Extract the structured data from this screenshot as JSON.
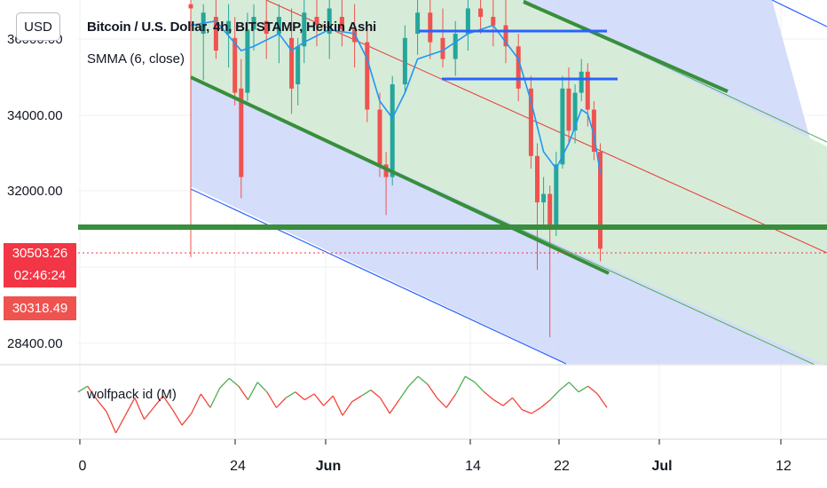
{
  "chart_data": {
    "type": "candlestick",
    "title": "Bitcoin / U.S. Dollar, 4h, BITSTAMP, Heikin Ashi",
    "indicator": "SMMA (6, close)",
    "oscillator": "wolfpack id (M)",
    "currency": "USD",
    "x_ticks": [
      "0",
      "24",
      "Jun",
      "14",
      "22",
      "Jul",
      "12"
    ],
    "y_ticks": [
      "36000.00",
      "34000.00",
      "32000.00",
      "28400.00"
    ],
    "last_price": "30503.26",
    "countdown": "02:46:24",
    "prev_close": "30318.49",
    "ylim": [
      27750,
      36400
    ],
    "candles": [
      {
        "x": 0.0,
        "o": 36300,
        "h": 36400,
        "l": 30300,
        "c": 36200
      },
      {
        "x": 1.0,
        "o": 35600,
        "h": 36300,
        "l": 34500,
        "c": 36100
      },
      {
        "x": 2.0,
        "o": 36000,
        "h": 36400,
        "l": 35000,
        "c": 35200
      },
      {
        "x": 3.0,
        "o": 35600,
        "h": 36300,
        "l": 34800,
        "c": 35900
      },
      {
        "x": 3.5,
        "o": 35500,
        "h": 36000,
        "l": 33900,
        "c": 34200
      },
      {
        "x": 4.0,
        "o": 34300,
        "h": 35000,
        "l": 31700,
        "c": 32200
      },
      {
        "x": 4.5,
        "o": 34200,
        "h": 36100,
        "l": 34000,
        "c": 35700
      },
      {
        "x": 5.0,
        "o": 35700,
        "h": 36300,
        "l": 35200,
        "c": 36000
      },
      {
        "x": 6.0,
        "o": 35900,
        "h": 36400,
        "l": 35000,
        "c": 35600
      },
      {
        "x": 7.0,
        "o": 35600,
        "h": 36300,
        "l": 34900,
        "c": 36000
      },
      {
        "x": 8.0,
        "o": 35500,
        "h": 36200,
        "l": 33700,
        "c": 34300
      },
      {
        "x": 8.5,
        "o": 34400,
        "h": 35500,
        "l": 33900,
        "c": 35300
      },
      {
        "x": 9.0,
        "o": 35300,
        "h": 36400,
        "l": 34900,
        "c": 36100
      },
      {
        "x": 10.0,
        "o": 36000,
        "h": 36400,
        "l": 35300,
        "c": 35800
      },
      {
        "x": 11.0,
        "o": 35600,
        "h": 36400,
        "l": 35000,
        "c": 36200
      },
      {
        "x": 12.0,
        "o": 36000,
        "h": 36400,
        "l": 35300,
        "c": 35700
      },
      {
        "x": 13.0,
        "o": 35700,
        "h": 36300,
        "l": 34800,
        "c": 35400
      },
      {
        "x": 14.0,
        "o": 35400,
        "h": 35800,
        "l": 33500,
        "c": 33800
      },
      {
        "x": 15.0,
        "o": 33800,
        "h": 34200,
        "l": 32200,
        "c": 32500
      },
      {
        "x": 15.5,
        "o": 32500,
        "h": 32800,
        "l": 31300,
        "c": 32200
      },
      {
        "x": 16.0,
        "o": 32200,
        "h": 34600,
        "l": 32000,
        "c": 34400
      },
      {
        "x": 17.0,
        "o": 34400,
        "h": 35800,
        "l": 34200,
        "c": 35500
      },
      {
        "x": 18.0,
        "o": 35600,
        "h": 36400,
        "l": 35100,
        "c": 36100
      },
      {
        "x": 19.0,
        "o": 36100,
        "h": 36400,
        "l": 35000,
        "c": 35400
      },
      {
        "x": 20.0,
        "o": 35500,
        "h": 36200,
        "l": 34800,
        "c": 35000
      },
      {
        "x": 21.0,
        "o": 35000,
        "h": 35900,
        "l": 34600,
        "c": 35600
      },
      {
        "x": 22.0,
        "o": 35600,
        "h": 36400,
        "l": 35200,
        "c": 36200
      },
      {
        "x": 23.0,
        "o": 36200,
        "h": 36400,
        "l": 35600,
        "c": 36000
      },
      {
        "x": 24.0,
        "o": 36000,
        "h": 36400,
        "l": 35300,
        "c": 35800
      },
      {
        "x": 25.0,
        "o": 35800,
        "h": 36400,
        "l": 34900,
        "c": 35300
      },
      {
        "x": 26.0,
        "o": 35300,
        "h": 35600,
        "l": 34000,
        "c": 34300
      },
      {
        "x": 27.0,
        "o": 34300,
        "h": 34600,
        "l": 32400,
        "c": 32700
      },
      {
        "x": 27.5,
        "o": 32700,
        "h": 33000,
        "l": 30000,
        "c": 31600
      },
      {
        "x": 28.0,
        "o": 31600,
        "h": 32200,
        "l": 31000,
        "c": 31800
      },
      {
        "x": 28.5,
        "o": 31800,
        "h": 32000,
        "l": 28400,
        "c": 31000
      },
      {
        "x": 29.0,
        "o": 31000,
        "h": 32800,
        "l": 30800,
        "c": 32500
      },
      {
        "x": 29.5,
        "o": 32500,
        "h": 34600,
        "l": 32400,
        "c": 34300
      },
      {
        "x": 30.0,
        "o": 34300,
        "h": 34800,
        "l": 33000,
        "c": 33300
      },
      {
        "x": 30.5,
        "o": 33300,
        "h": 34400,
        "l": 33000,
        "c": 34200
      },
      {
        "x": 31.0,
        "o": 34200,
        "h": 35000,
        "l": 34000,
        "c": 34700
      },
      {
        "x": 31.5,
        "o": 34700,
        "h": 34900,
        "l": 33400,
        "c": 33800
      },
      {
        "x": 32.0,
        "o": 33800,
        "h": 34000,
        "l": 32600,
        "c": 32800
      },
      {
        "x": 32.5,
        "o": 32800,
        "h": 33000,
        "l": 30200,
        "c": 30500
      }
    ],
    "smma": [
      [
        0,
        35800
      ],
      [
        2,
        35900
      ],
      [
        4,
        35200
      ],
      [
        5,
        35300
      ],
      [
        7,
        35600
      ],
      [
        8,
        35200
      ],
      [
        9,
        35400
      ],
      [
        11,
        35700
      ],
      [
        13,
        35600
      ],
      [
        14,
        35000
      ],
      [
        15,
        34000
      ],
      [
        16,
        33600
      ],
      [
        17,
        34200
      ],
      [
        18,
        35000
      ],
      [
        20,
        35200
      ],
      [
        22,
        35600
      ],
      [
        24,
        35800
      ],
      [
        26,
        35000
      ],
      [
        27,
        34000
      ],
      [
        28,
        32800
      ],
      [
        29,
        32400
      ],
      [
        30,
        33000
      ],
      [
        31,
        33800
      ],
      [
        31.5,
        33700
      ],
      [
        32,
        33200
      ],
      [
        32.5,
        32300
      ]
    ],
    "oscillator_values": [
      0.6,
      0.9,
      0.2,
      -0.4,
      -1.5,
      -0.6,
      0.3,
      -0.8,
      -0.2,
      0.4,
      -0.3,
      -1.1,
      -0.5,
      0.5,
      -0.2,
      0.8,
      1.3,
      0.9,
      0.2,
      1.1,
      0.6,
      -0.2,
      0.3,
      0.6,
      0.2,
      0.5,
      -0.1,
      0.4,
      -0.6,
      0.1,
      0.4,
      0.7,
      0.3,
      -0.5,
      0.2,
      0.9,
      1.4,
      1.0,
      0.3,
      -0.2,
      0.5,
      1.4,
      1.1,
      0.6,
      0.2,
      -0.1,
      0.3,
      -0.3,
      -0.5,
      -0.2,
      0.2,
      0.7,
      1.1,
      0.6,
      0.9,
      0.5,
      -0.2
    ]
  },
  "colors": {
    "up": "#26a69a",
    "down": "#ef5350",
    "smma": "#2196f3",
    "channel_green": "#d6ecd6",
    "channel_blue": "#cfd9f8",
    "support": "#388e3c",
    "resistance": "#2962ff",
    "price_label": "#f23645",
    "osc_up": "#4caf50",
    "osc_down": "#f44336"
  }
}
